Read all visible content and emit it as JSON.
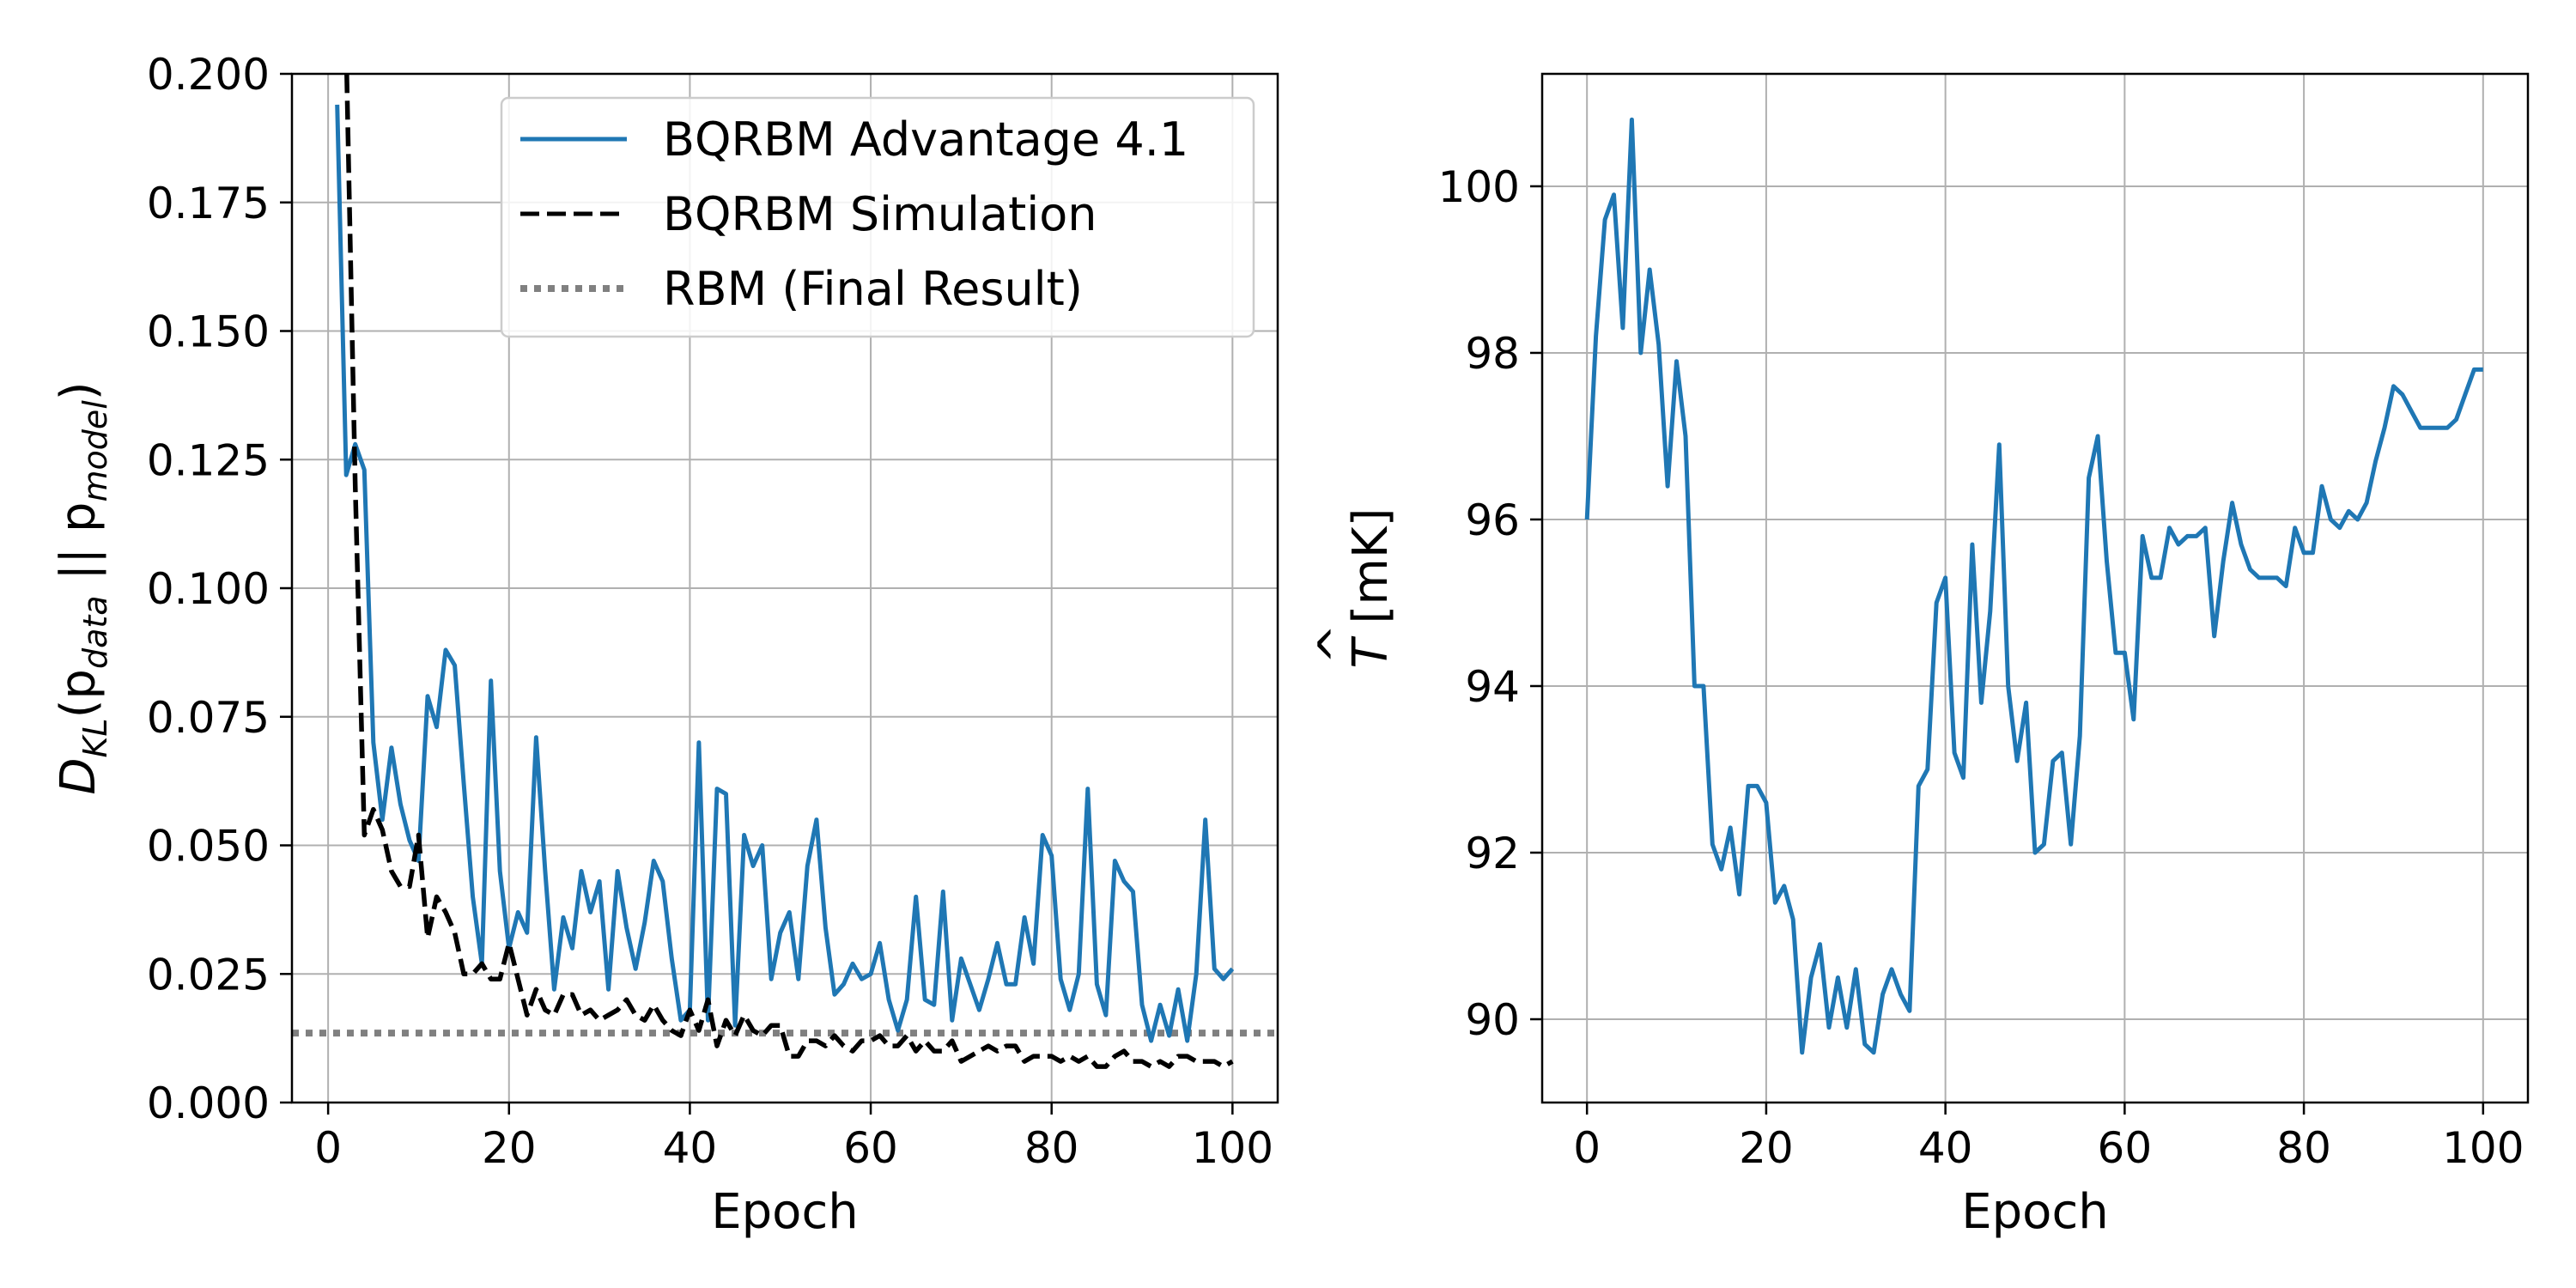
{
  "chart_data": [
    {
      "type": "line",
      "xlabel": "Epoch",
      "ylabel_parts": {
        "main": "D",
        "sub1": "KL",
        "open": "(p",
        "sub2": "data",
        "sep": " || p",
        "sub3": "model",
        "close": ")"
      },
      "xlim": [
        -4,
        105
      ],
      "ylim": [
        0,
        0.2
      ],
      "xticks": [
        0,
        20,
        40,
        60,
        80,
        100
      ],
      "yticks": [
        0.0,
        0.025,
        0.05,
        0.075,
        0.1,
        0.125,
        0.15,
        0.175,
        0.2
      ],
      "xtick_labels": [
        "0",
        "20",
        "40",
        "60",
        "80",
        "100"
      ],
      "ytick_labels": [
        "0.000",
        "0.025",
        "0.050",
        "0.075",
        "0.100",
        "0.125",
        "0.150",
        "0.175",
        "0.200"
      ],
      "grid": true,
      "legend_position": "top-right",
      "series": [
        {
          "name": "BQRBM Advantage 4.1",
          "color": "#1f77b4",
          "style": "solid",
          "x": [
            1,
            2,
            3,
            4,
            5,
            6,
            7,
            8,
            9,
            10,
            11,
            12,
            13,
            14,
            15,
            16,
            17,
            18,
            19,
            20,
            21,
            22,
            23,
            24,
            25,
            26,
            27,
            28,
            29,
            30,
            31,
            32,
            33,
            34,
            35,
            36,
            37,
            38,
            39,
            40,
            41,
            42,
            43,
            44,
            45,
            46,
            47,
            48,
            49,
            50,
            51,
            52,
            53,
            54,
            55,
            56,
            57,
            58,
            59,
            60,
            61,
            62,
            63,
            64,
            65,
            66,
            67,
            68,
            69,
            70,
            71,
            72,
            73,
            74,
            75,
            76,
            77,
            78,
            79,
            80,
            81,
            82,
            83,
            84,
            85,
            86,
            87,
            88,
            89,
            90,
            91,
            92,
            93,
            94,
            95,
            96,
            97,
            98,
            99,
            100
          ],
          "y": [
            0.194,
            0.122,
            0.128,
            0.123,
            0.07,
            0.055,
            0.069,
            0.058,
            0.051,
            0.047,
            0.079,
            0.073,
            0.088,
            0.085,
            0.062,
            0.04,
            0.027,
            0.082,
            0.045,
            0.03,
            0.037,
            0.033,
            0.071,
            0.045,
            0.022,
            0.036,
            0.03,
            0.045,
            0.037,
            0.043,
            0.022,
            0.045,
            0.034,
            0.026,
            0.035,
            0.047,
            0.043,
            0.028,
            0.016,
            0.018,
            0.07,
            0.016,
            0.061,
            0.06,
            0.015,
            0.052,
            0.046,
            0.05,
            0.024,
            0.033,
            0.037,
            0.024,
            0.046,
            0.055,
            0.034,
            0.021,
            0.023,
            0.027,
            0.024,
            0.025,
            0.031,
            0.02,
            0.014,
            0.02,
            0.04,
            0.02,
            0.019,
            0.041,
            0.016,
            0.028,
            0.023,
            0.018,
            0.024,
            0.031,
            0.023,
            0.023,
            0.036,
            0.027,
            0.052,
            0.048,
            0.024,
            0.018,
            0.025,
            0.061,
            0.023,
            0.017,
            0.047,
            0.043,
            0.041,
            0.019,
            0.012,
            0.019,
            0.013,
            0.022,
            0.012,
            0.025,
            0.055,
            0.026,
            0.024,
            0.026
          ]
        },
        {
          "name": "BQRBM Simulation",
          "color": "#000000",
          "style": "dashed",
          "x": [
            1,
            2,
            3,
            4,
            5,
            6,
            7,
            8,
            9,
            10,
            11,
            12,
            13,
            14,
            15,
            16,
            17,
            18,
            19,
            20,
            21,
            22,
            23,
            24,
            25,
            26,
            27,
            28,
            29,
            30,
            31,
            32,
            33,
            34,
            35,
            36,
            37,
            38,
            39,
            40,
            41,
            42,
            43,
            44,
            45,
            46,
            47,
            48,
            49,
            50,
            51,
            52,
            53,
            54,
            55,
            56,
            57,
            58,
            59,
            60,
            61,
            62,
            63,
            64,
            65,
            66,
            67,
            68,
            69,
            70,
            71,
            72,
            73,
            74,
            75,
            76,
            77,
            78,
            79,
            80,
            81,
            82,
            83,
            84,
            85,
            86,
            87,
            88,
            89,
            90,
            91,
            92,
            93,
            94,
            95,
            96,
            97,
            98,
            99,
            100
          ],
          "y": [
            0.21,
            0.205,
            0.12,
            0.052,
            0.057,
            0.053,
            0.045,
            0.042,
            0.042,
            0.052,
            0.032,
            0.04,
            0.037,
            0.033,
            0.025,
            0.025,
            0.027,
            0.024,
            0.024,
            0.031,
            0.024,
            0.017,
            0.022,
            0.018,
            0.017,
            0.021,
            0.021,
            0.017,
            0.018,
            0.016,
            0.017,
            0.018,
            0.02,
            0.017,
            0.016,
            0.019,
            0.016,
            0.014,
            0.013,
            0.018,
            0.014,
            0.02,
            0.011,
            0.016,
            0.013,
            0.017,
            0.014,
            0.013,
            0.015,
            0.015,
            0.009,
            0.009,
            0.012,
            0.012,
            0.011,
            0.013,
            0.011,
            0.01,
            0.012,
            0.012,
            0.013,
            0.011,
            0.011,
            0.013,
            0.01,
            0.012,
            0.01,
            0.01,
            0.012,
            0.008,
            0.009,
            0.01,
            0.011,
            0.01,
            0.011,
            0.011,
            0.008,
            0.009,
            0.009,
            0.009,
            0.008,
            0.009,
            0.008,
            0.009,
            0.007,
            0.007,
            0.009,
            0.01,
            0.008,
            0.008,
            0.007,
            0.008,
            0.007,
            0.009,
            0.009,
            0.008,
            0.008,
            0.008,
            0.007,
            0.008
          ]
        }
      ],
      "reference_line": {
        "name": "RBM (Final Result)",
        "y": 0.0135,
        "color": "#808080",
        "style": "dotted"
      }
    },
    {
      "type": "line",
      "xlabel": "Epoch",
      "ylabel_parts": {
        "main": "T",
        "hat": "^",
        "unit": " [mK]"
      },
      "xlim": [
        -5,
        105
      ],
      "ylim": [
        89,
        101.35
      ],
      "xticks": [
        0,
        20,
        40,
        60,
        80,
        100
      ],
      "yticks": [
        90,
        92,
        94,
        96,
        98,
        100
      ],
      "xtick_labels": [
        "0",
        "20",
        "40",
        "60",
        "80",
        "100"
      ],
      "ytick_labels": [
        "90",
        "92",
        "94",
        "96",
        "98",
        "100"
      ],
      "grid": true,
      "series": [
        {
          "color": "#1f77b4",
          "style": "solid",
          "x": [
            0,
            1,
            2,
            3,
            4,
            5,
            6,
            7,
            8,
            9,
            10,
            11,
            12,
            13,
            14,
            15,
            16,
            17,
            18,
            19,
            20,
            21,
            22,
            23,
            24,
            25,
            26,
            27,
            28,
            29,
            30,
            31,
            32,
            33,
            34,
            35,
            36,
            37,
            38,
            39,
            40,
            41,
            42,
            43,
            44,
            45,
            46,
            47,
            48,
            49,
            50,
            51,
            52,
            53,
            54,
            55,
            56,
            57,
            58,
            59,
            60,
            61,
            62,
            63,
            64,
            65,
            66,
            67,
            68,
            69,
            70,
            71,
            72,
            73,
            74,
            75,
            76,
            77,
            78,
            79,
            80,
            81,
            82,
            83,
            84,
            85,
            86,
            87,
            88,
            89,
            90,
            91,
            92,
            93,
            94,
            95,
            96,
            97,
            98,
            99,
            100
          ],
          "y": [
            96.0,
            98.2,
            99.6,
            99.9,
            98.3,
            100.8,
            98.0,
            99.0,
            98.1,
            96.4,
            97.9,
            97.0,
            94.0,
            94.0,
            92.1,
            91.8,
            92.3,
            91.5,
            92.8,
            92.8,
            92.6,
            91.4,
            91.6,
            91.2,
            89.6,
            90.5,
            90.9,
            89.9,
            90.5,
            89.9,
            90.6,
            89.7,
            89.6,
            90.3,
            90.6,
            90.3,
            90.1,
            92.8,
            93.0,
            95.0,
            95.3,
            93.2,
            92.9,
            95.7,
            93.8,
            94.9,
            96.9,
            94.0,
            93.1,
            93.8,
            92.0,
            92.1,
            93.1,
            93.2,
            92.1,
            93.4,
            96.5,
            97.0,
            95.5,
            94.4,
            94.4,
            93.6,
            95.8,
            95.3,
            95.3,
            95.9,
            95.7,
            95.8,
            95.8,
            95.9,
            94.6,
            95.5,
            96.2,
            95.7,
            95.4,
            95.3,
            95.3,
            95.3,
            95.2,
            95.9,
            95.6,
            95.6,
            96.4,
            96.0,
            95.9,
            96.1,
            96.0,
            96.2,
            96.7,
            97.1,
            97.6,
            97.5,
            97.3,
            97.1,
            97.1,
            97.1,
            97.1,
            97.2,
            97.5,
            97.8,
            97.8
          ]
        }
      ]
    }
  ]
}
